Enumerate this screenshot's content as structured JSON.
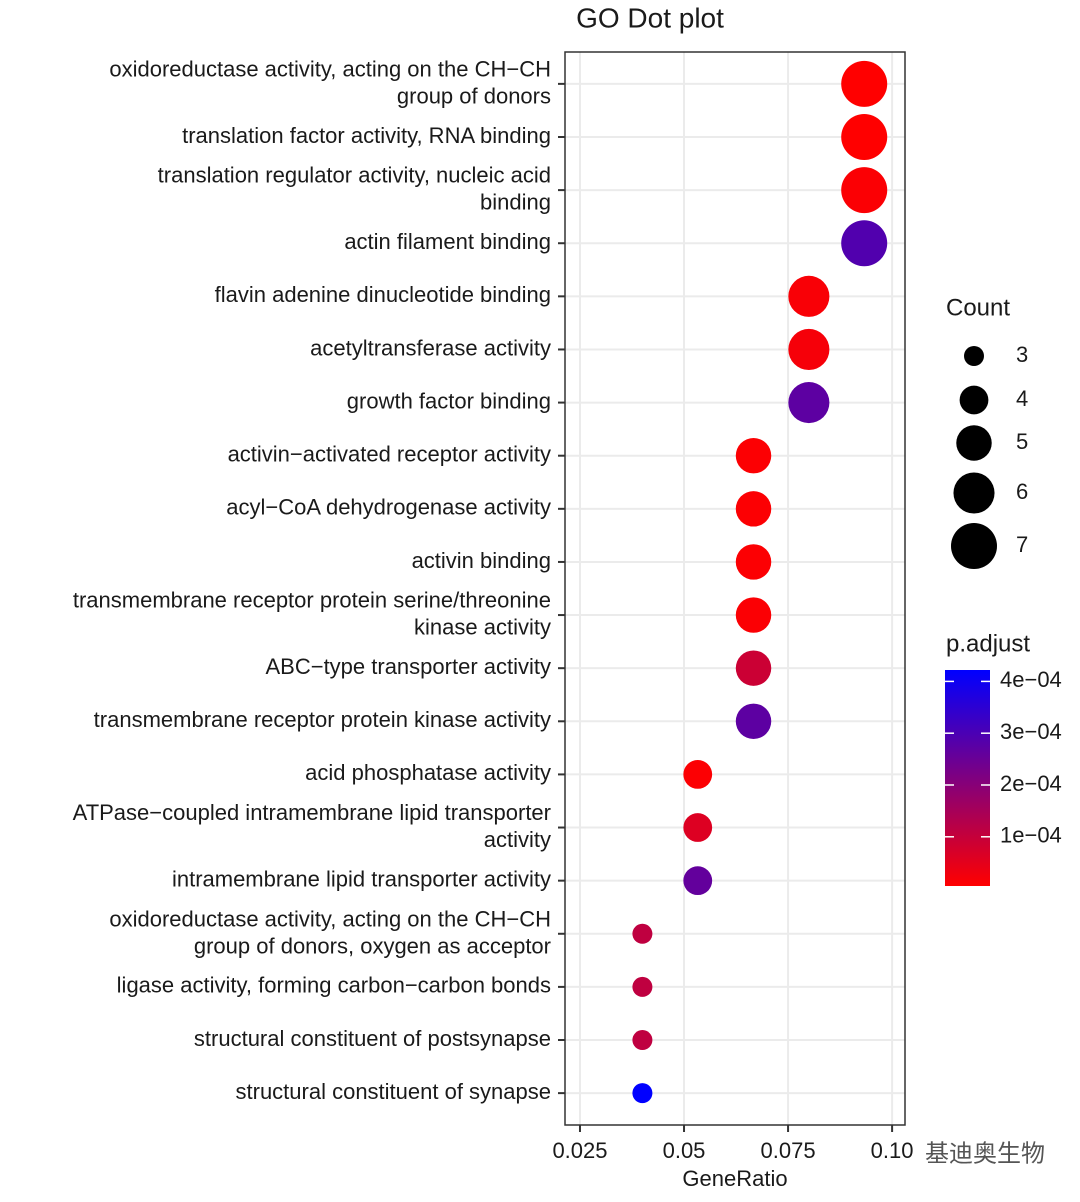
{
  "chart_data": {
    "type": "dot",
    "title": "GO Dot plot",
    "x_label": "GeneRatio",
    "categories": [
      "oxidoreductase activity, acting on the CH−CH\ngroup of donors",
      "translation factor activity, RNA binding",
      "translation regulator activity, nucleic acid\nbinding",
      "actin filament binding",
      "flavin adenine dinucleotide binding",
      "acetyltransferase activity",
      "growth factor binding",
      "activin−activated receptor activity",
      "acyl−CoA dehydrogenase activity",
      "activin binding",
      "transmembrane receptor protein serine/threonine\nkinase activity",
      "ABC−type transporter activity",
      "transmembrane receptor protein kinase activity",
      "acid phosphatase activity",
      "ATPase−coupled intramembrane lipid transporter\nactivity",
      "intramembrane lipid transporter activity",
      "oxidoreductase activity, acting on the CH−CH\ngroup of donors, oxygen as acceptor",
      "ligase activity, forming carbon−carbon bonds",
      "structural constituent of postsynapse",
      "structural constituent of synapse"
    ],
    "values": [
      0.0933,
      0.0933,
      0.0933,
      0.0933,
      0.08,
      0.08,
      0.08,
      0.0667,
      0.0667,
      0.0667,
      0.0667,
      0.0667,
      0.0667,
      0.0533,
      0.0533,
      0.0533,
      0.04,
      0.04,
      0.04,
      0.04
    ],
    "counts": [
      7,
      7,
      7,
      7,
      6,
      6,
      6,
      5,
      5,
      5,
      5,
      5,
      5,
      4,
      4,
      4,
      3,
      3,
      3,
      3
    ],
    "p_adjust": [
      5e-06,
      5e-06,
      1.2e-05,
      0.00029,
      1.5e-05,
      2e-05,
      0.00027,
      1e-05,
      1e-05,
      1e-05,
      1.2e-05,
      9e-05,
      0.00027,
      1e-05,
      6e-05,
      0.00026,
      0.00011,
      0.00011,
      0.00011,
      0.000422
    ],
    "xlim": [
      0.0214,
      0.1031
    ],
    "xticks": [
      0.025,
      0.05,
      0.075,
      {
        "value": 0.1,
        "label": "0.10"
      }
    ],
    "grid": true,
    "size_legend": {
      "title": "Count",
      "values": [
        3,
        4,
        5,
        6,
        7
      ]
    },
    "color_legend": {
      "title": "p.adjust",
      "low_color": "#ff0000",
      "high_color": "#0000ff",
      "ticks": [
        {
          "value": 0.0004,
          "label": "4e−04"
        },
        {
          "value": 0.0003,
          "label": "3e−04"
        },
        {
          "value": 0.0002,
          "label": "2e−04"
        },
        {
          "value": 0.0001,
          "label": "1e−04"
        }
      ]
    },
    "watermark": "基迪奥生物"
  }
}
